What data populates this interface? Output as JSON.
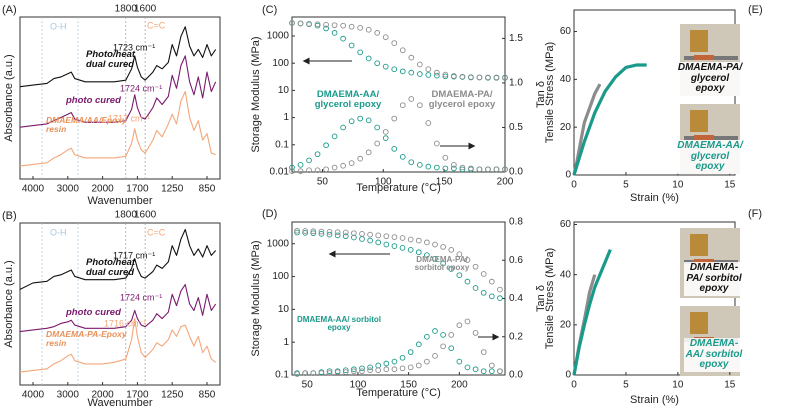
{
  "chart_data": [
    {
      "type": "line",
      "panel": "(A)",
      "xscale": "piecewise",
      "xlabel": "Wavenumber",
      "ylabel": "Absorbance (a.u.)",
      "xlim": [
        4400,
        700
      ],
      "xticks": [
        4000,
        3000,
        2000,
        1700,
        1250,
        850
      ],
      "top_ticks": [
        1800,
        1600
      ],
      "ylim": [
        0,
        10
      ],
      "annotations": [
        "1723 cm⁻¹",
        "1724 cm⁻¹",
        "1717 cm⁻¹",
        "O-H",
        "C=C"
      ],
      "x": [
        4400,
        4000,
        3600,
        3400,
        3200,
        3000,
        2900,
        2800,
        2500,
        2200,
        2000,
        1900,
        1800,
        1750,
        1723,
        1700,
        1650,
        1600,
        1500,
        1450,
        1380,
        1300,
        1250,
        1200,
        1150,
        1100,
        1050,
        1000,
        950,
        900,
        850,
        800,
        750
      ],
      "series": [
        {
          "name": "Photo/heat dual cured",
          "color": "#111111",
          "values": [
            5.7,
            5.8,
            5.9,
            6.2,
            6.3,
            6.5,
            6.6,
            6.2,
            6.0,
            6.0,
            6.0,
            6.0,
            6.1,
            6.8,
            7.6,
            6.9,
            6.3,
            6.1,
            6.6,
            7.0,
            6.8,
            7.2,
            8.3,
            7.6,
            8.8,
            9.4,
            8.2,
            7.6,
            8.0,
            7.5,
            8.3,
            7.6,
            8.0
          ]
        },
        {
          "name": "photo cured",
          "color": "#7b1a6e",
          "values": [
            3.2,
            3.3,
            3.4,
            3.6,
            3.8,
            4.0,
            4.1,
            3.7,
            3.5,
            3.5,
            3.5,
            3.5,
            3.6,
            4.3,
            5.2,
            4.4,
            3.8,
            3.7,
            4.4,
            5.0,
            4.6,
            5.1,
            6.4,
            5.6,
            7.0,
            7.6,
            6.0,
            5.2,
            6.3,
            5.0,
            6.6,
            5.4,
            6.0
          ]
        },
        {
          "name": "DMAEMA/AA/Epoxy resin",
          "color": "#f3a77a",
          "values": [
            0.8,
            0.9,
            1.0,
            1.3,
            1.5,
            1.8,
            1.9,
            1.5,
            1.3,
            1.3,
            1.3,
            1.3,
            1.4,
            2.2,
            3.1,
            2.4,
            1.8,
            1.6,
            2.4,
            3.0,
            2.6,
            3.4,
            4.0,
            3.4,
            4.8,
            5.4,
            3.8,
            3.0,
            3.6,
            2.4,
            2.8,
            1.6,
            1.5
          ]
        }
      ]
    },
    {
      "type": "line",
      "panel": "(B)",
      "xscale": "piecewise",
      "xlabel": "Wavenumber",
      "ylabel": "Absorbance (a.u.)",
      "xlim": [
        4400,
        700
      ],
      "xticks": [
        4000,
        3000,
        2000,
        1700,
        1250,
        850
      ],
      "top_ticks": [
        1800,
        1600
      ],
      "ylim": [
        0,
        10
      ],
      "annotations": [
        "1717 cm⁻¹",
        "1724 cm⁻¹",
        "1716 cm⁻¹",
        "O-H",
        "C=C"
      ],
      "x": [
        4400,
        4000,
        3600,
        3400,
        3200,
        3000,
        2900,
        2800,
        2500,
        2200,
        2000,
        1900,
        1800,
        1750,
        1723,
        1700,
        1650,
        1600,
        1500,
        1450,
        1380,
        1300,
        1250,
        1200,
        1150,
        1100,
        1050,
        1000,
        950,
        900,
        850,
        800,
        750
      ],
      "series": [
        {
          "name": "Photo/heat dual cured",
          "color": "#111111",
          "values": [
            5.9,
            6.3,
            6.4,
            6.7,
            6.8,
            7.0,
            7.1,
            6.7,
            6.5,
            6.5,
            6.5,
            6.5,
            6.6,
            7.2,
            7.8,
            7.2,
            6.7,
            6.6,
            7.0,
            7.4,
            7.2,
            7.6,
            8.6,
            8.0,
            9.0,
            9.6,
            8.6,
            8.0,
            8.4,
            7.9,
            8.6,
            8.0,
            8.3
          ]
        },
        {
          "name": "photo cured",
          "color": "#7b1a6e",
          "values": [
            3.3,
            3.4,
            3.5,
            3.6,
            3.8,
            3.9,
            4.0,
            3.7,
            3.5,
            3.5,
            3.5,
            3.5,
            3.6,
            4.0,
            4.6,
            4.1,
            3.7,
            3.6,
            4.0,
            4.4,
            4.1,
            4.5,
            5.6,
            4.9,
            5.8,
            6.2,
            5.0,
            4.6,
            5.4,
            4.3,
            5.6,
            4.6,
            5.0
          ]
        },
        {
          "name": "DMAEMA-PA-Epoxy resin",
          "color": "#f3a77a",
          "values": [
            0.8,
            0.9,
            1.0,
            1.3,
            1.5,
            1.8,
            1.9,
            1.5,
            1.3,
            1.3,
            1.3,
            1.4,
            1.6,
            2.8,
            4.1,
            3.0,
            2.0,
            1.7,
            2.2,
            2.6,
            2.4,
            2.8,
            3.4,
            3.0,
            3.6,
            3.7,
            3.0,
            2.4,
            3.0,
            2.0,
            2.4,
            1.6,
            1.4
          ]
        }
      ]
    },
    {
      "type": "scatter",
      "panel": "(C)",
      "xlabel": "Temperature (°C)",
      "ylabel": "Storage Modulus (MPa)",
      "y2label": "Tan δ",
      "xlim": [
        25,
        200
      ],
      "xticks": [
        50,
        100,
        150,
        200
      ],
      "ylog": true,
      "ylim": [
        0.01,
        5000
      ],
      "yticks": [
        0.01,
        0.1,
        1,
        10,
        100,
        1000
      ],
      "y2lim": [
        0,
        1.74
      ],
      "y2ticks": [
        {
          "value": 0,
          "label": "0.0"
        },
        0.5,
        {
          "value": 1,
          "label": "1.0"
        },
        1.5
      ],
      "x": [
        25,
        32,
        39,
        46,
        53,
        60,
        67,
        74,
        81,
        88,
        95,
        102,
        109,
        116,
        123,
        130,
        137,
        144,
        151,
        158,
        165,
        172,
        179,
        186,
        193,
        200
      ],
      "series": [
        {
          "name": "DMAEMA-AA/ glycerol epoxy",
          "color": "#1a9a8a",
          "values": [
            3000,
            2900,
            2700,
            2400,
            1900,
            1300,
            800,
            450,
            250,
            150,
            100,
            75,
            60,
            50,
            45,
            40,
            37,
            35,
            33,
            32,
            31,
            30,
            30,
            29,
            29,
            29
          ]
        },
        {
          "name": "DMAEMA-PA/ glycerol epoxy",
          "color": "#8c8c8c",
          "values": [
            3000,
            2900,
            2800,
            2700,
            2600,
            2500,
            2400,
            2200,
            2000,
            1700,
            1300,
            900,
            550,
            300,
            160,
            90,
            60,
            45,
            38,
            34,
            32,
            31,
            30,
            30,
            30,
            30
          ]
        },
        {
          "color": "#1a9a8a",
          "axis": "y2",
          "values": [
            0.05,
            0.08,
            0.13,
            0.2,
            0.3,
            0.4,
            0.5,
            0.57,
            0.6,
            0.58,
            0.5,
            0.38,
            0.26,
            0.17,
            0.11,
            0.08,
            0.06,
            0.05,
            0.04,
            0.04,
            0.03,
            0.03,
            0.03,
            0.03,
            0.03,
            0.03
          ]
        },
        {
          "color": "#8c8c8c",
          "axis": "y2",
          "values": [
            0.01,
            0.01,
            0.02,
            0.02,
            0.03,
            0.05,
            0.07,
            0.1,
            0.15,
            0.22,
            0.32,
            0.45,
            0.6,
            0.75,
            0.82,
            0.75,
            0.55,
            0.32,
            0.16,
            0.08,
            0.05,
            0.04,
            0.03,
            0.03,
            0.03,
            0.03
          ]
        }
      ]
    },
    {
      "type": "scatter",
      "panel": "(D)",
      "xlabel": "Temperature (°C)",
      "ylabel": "Storage Modulus (MPa)",
      "y2label": "Tan δ",
      "xlim": [
        35,
        245
      ],
      "xticks": [
        50,
        100,
        150,
        200
      ],
      "ylog": true,
      "ylim": [
        0.1,
        4600
      ],
      "yticks": [
        0.1,
        1,
        10,
        100,
        1000
      ],
      "y2lim": [
        0,
        0.8
      ],
      "y2ticks": [
        {
          "value": 0,
          "label": "0.0"
        },
        0.2,
        0.4,
        0.6,
        0.8
      ],
      "x": [
        40,
        48,
        56,
        64,
        72,
        80,
        88,
        96,
        104,
        112,
        120,
        128,
        136,
        144,
        152,
        160,
        168,
        176,
        184,
        192,
        200,
        208,
        216,
        224,
        232,
        240
      ],
      "series": [
        {
          "name": "DMAEMA-AA/ sorbitol epoxy",
          "color": "#1a9a8a",
          "values": [
            2200,
            2150,
            2100,
            2000,
            1900,
            1800,
            1700,
            1550,
            1400,
            1250,
            1100,
            950,
            850,
            750,
            650,
            550,
            450,
            350,
            250,
            170,
            110,
            70,
            45,
            32,
            25,
            22
          ]
        },
        {
          "name": "DMAEMA-PA/ sorbitol epoxy",
          "color": "#8c8c8c",
          "values": [
            2500,
            2450,
            2400,
            2350,
            2300,
            2250,
            2200,
            2100,
            2000,
            1900,
            1800,
            1700,
            1600,
            1500,
            1350,
            1250,
            1100,
            950,
            800,
            650,
            480,
            320,
            200,
            120,
            70,
            40
          ]
        },
        {
          "color": "#1a9a8a",
          "axis": "y2",
          "values": [
            0.01,
            0.01,
            0.01,
            0.015,
            0.02,
            0.02,
            0.025,
            0.03,
            0.035,
            0.04,
            0.05,
            0.06,
            0.07,
            0.09,
            0.12,
            0.16,
            0.2,
            0.23,
            0.21,
            0.14,
            0.07,
            0.04,
            0.03,
            0.02,
            0.02,
            0.02
          ]
        },
        {
          "color": "#8c8c8c",
          "axis": "y2",
          "values": [
            0.005,
            0.01,
            0.01,
            0.01,
            0.01,
            0.015,
            0.015,
            0.02,
            0.02,
            0.025,
            0.025,
            0.03,
            0.03,
            0.035,
            0.04,
            0.05,
            0.07,
            0.1,
            0.15,
            0.21,
            0.26,
            0.28,
            0.22,
            0.12,
            0.05,
            0.02
          ]
        }
      ]
    },
    {
      "type": "line",
      "panel": "(E)",
      "xlabel": "Strain (%)",
      "ylabel": "Tensile Stress (MPa)",
      "xlim": [
        0,
        15.5
      ],
      "xticks": [
        0,
        5,
        10,
        15
      ],
      "ylim": [
        0,
        69
      ],
      "yticks": [
        0,
        20,
        40,
        60
      ],
      "series": [
        {
          "name": "DMAEMA-PA/ glycerol epoxy",
          "color": "#8c8c8c",
          "x": [
            0,
            0.3,
            0.6,
            1,
            1.5,
            2,
            2.5
          ],
          "values": [
            0,
            6,
            13,
            22,
            28,
            34,
            38
          ]
        },
        {
          "name": "DMAEMA-AA/ glycerol epoxy",
          "color": "#1a9a8a",
          "x": [
            0,
            0.5,
            1,
            2,
            3,
            4,
            5,
            6,
            7
          ],
          "values": [
            0,
            7,
            14,
            26,
            35,
            41,
            45,
            46,
            46
          ]
        }
      ]
    },
    {
      "type": "line",
      "panel": "(F)",
      "xlabel": "Strain (%)",
      "ylabel": "Tensile Stress (MPa)",
      "xlim": [
        0,
        15.5
      ],
      "xticks": [
        0,
        5,
        10,
        15
      ],
      "ylim": [
        0,
        61
      ],
      "yticks": [
        0,
        20,
        40,
        60
      ],
      "series": [
        {
          "name": "DMAEMA-PA/ sorbitol epoxy",
          "color": "#8c8c8c",
          "x": [
            0,
            0.5,
            1,
            1.5,
            2
          ],
          "values": [
            0,
            12,
            22,
            33,
            40
          ]
        },
        {
          "name": "DMAEMA-AA/ sorbitol epoxy",
          "color": "#1a9a8a",
          "x": [
            0,
            0.5,
            1,
            1.5,
            2,
            2.5,
            3,
            3.5
          ],
          "values": [
            0,
            11,
            20,
            28,
            35,
            40,
            45,
            50
          ]
        }
      ]
    }
  ]
}
